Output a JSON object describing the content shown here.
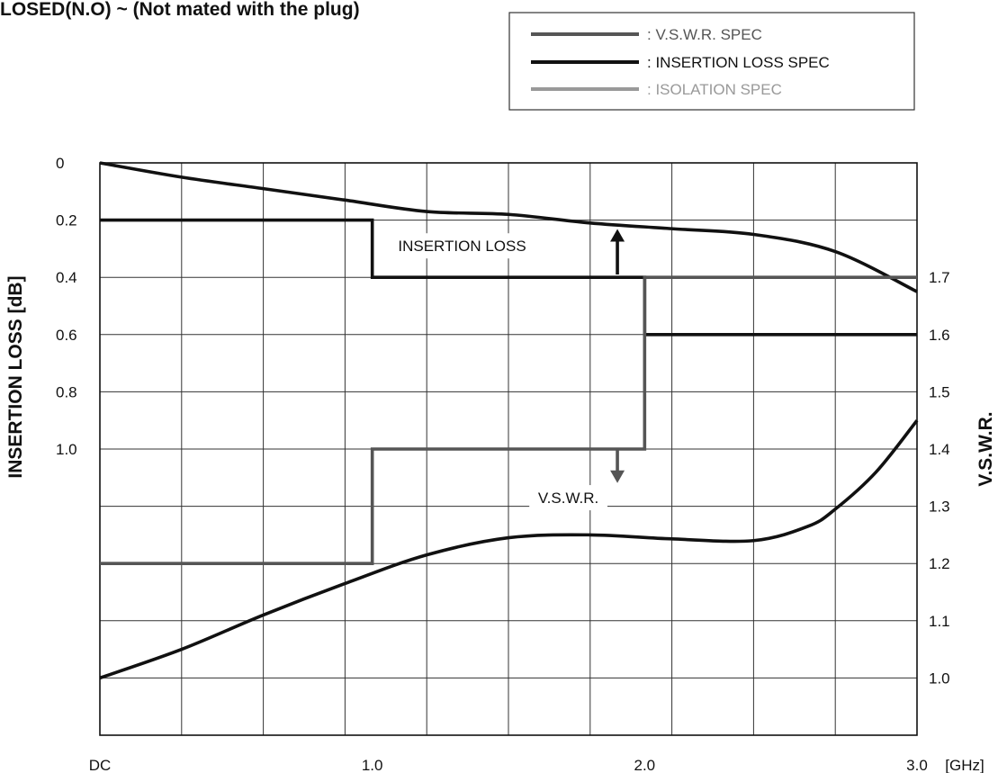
{
  "chart_data": {
    "type": "line",
    "title": "LOSED(N.O) ~ (Not mated with the plug)",
    "xlabel": "",
    "x_unit": "[GHz]",
    "xlim": [
      0,
      3.0
    ],
    "x_ticks": [
      {
        "value": 0,
        "label": "DC"
      },
      {
        "value": 1.0,
        "label": "1.0"
      },
      {
        "value": 2.0,
        "label": "2.0"
      },
      {
        "value": 3.0,
        "label": "3.0"
      }
    ],
    "y_left": {
      "label": "INSERTION LOSS [dB]",
      "range": [
        0,
        2.0
      ],
      "inverted": true,
      "ticks": [
        {
          "value": 0,
          "label": "0"
        },
        {
          "value": 0.2,
          "label": "0.2"
        },
        {
          "value": 0.4,
          "label": "0.4"
        },
        {
          "value": 0.6,
          "label": "0.6"
        },
        {
          "value": 0.8,
          "label": "0.8"
        },
        {
          "value": 1.0,
          "label": "1.0"
        }
      ]
    },
    "y_right": {
      "label": "V.S.W.R.",
      "range": [
        0.9,
        1.9
      ],
      "ticks": [
        {
          "value": 1.0,
          "label": "1.0"
        },
        {
          "value": 1.1,
          "label": "1.1"
        },
        {
          "value": 1.2,
          "label": "1.2"
        },
        {
          "value": 1.3,
          "label": "1.3"
        },
        {
          "value": 1.4,
          "label": "1.4"
        },
        {
          "value": 1.5,
          "label": "1.5"
        },
        {
          "value": 1.6,
          "label": "1.6"
        },
        {
          "value": 1.7,
          "label": "1.7"
        }
      ]
    },
    "grid": true,
    "legend": {
      "placement": "top-right",
      "entries": [
        {
          "label": ": V.S.W.R. SPEC",
          "color": "#555555"
        },
        {
          "label": ": INSERTION LOSS SPEC",
          "color": "#111111"
        },
        {
          "label": ": ISOLATION SPEC",
          "color": "#999999"
        }
      ]
    },
    "series": [
      {
        "name": "INSERTION LOSS",
        "axis": "left",
        "color": "#111111",
        "x": [
          0,
          0.3,
          0.6,
          0.9,
          1.2,
          1.5,
          1.8,
          2.1,
          2.4,
          2.7,
          3.0
        ],
        "values": [
          0,
          0.05,
          0.09,
          0.13,
          0.17,
          0.18,
          0.21,
          0.23,
          0.25,
          0.31,
          0.45
        ]
      },
      {
        "name": "V.S.W.R.",
        "axis": "right",
        "color": "#111111",
        "x": [
          0,
          0.3,
          0.6,
          0.9,
          1.2,
          1.5,
          1.8,
          2.1,
          2.4,
          2.6,
          2.7,
          2.85,
          3.0
        ],
        "values": [
          1.0,
          1.05,
          1.11,
          1.165,
          1.215,
          1.245,
          1.25,
          1.243,
          1.24,
          1.265,
          1.295,
          1.36,
          1.45
        ]
      },
      {
        "name": "INSERTION LOSS SPEC",
        "axis": "left",
        "color": "#111111",
        "step": true,
        "x": [
          0,
          1.0,
          1.0,
          2.0,
          2.0,
          3.0
        ],
        "values": [
          0.2,
          0.2,
          0.4,
          0.4,
          0.6,
          0.6
        ]
      },
      {
        "name": "V.S.W.R. SPEC",
        "axis": "right",
        "color": "#555555",
        "step": true,
        "x": [
          0,
          1.0,
          1.0,
          2.0,
          2.0,
          3.0
        ],
        "values": [
          1.2,
          1.2,
          1.4,
          1.4,
          1.7,
          1.7
        ]
      }
    ],
    "annotations": [
      {
        "text": "INSERTION   LOSS",
        "x": 1.33,
        "y_left": 0.29
      },
      {
        "text": "V.S.W.R.",
        "x": 1.72,
        "y_right": 1.315
      }
    ],
    "arrows": [
      {
        "x": 1.9,
        "from_left": 0.39,
        "to_left": 0.25,
        "direction": "up"
      },
      {
        "x": 1.9,
        "from_right": 1.4,
        "to_right": 1.35,
        "direction": "down"
      }
    ]
  }
}
